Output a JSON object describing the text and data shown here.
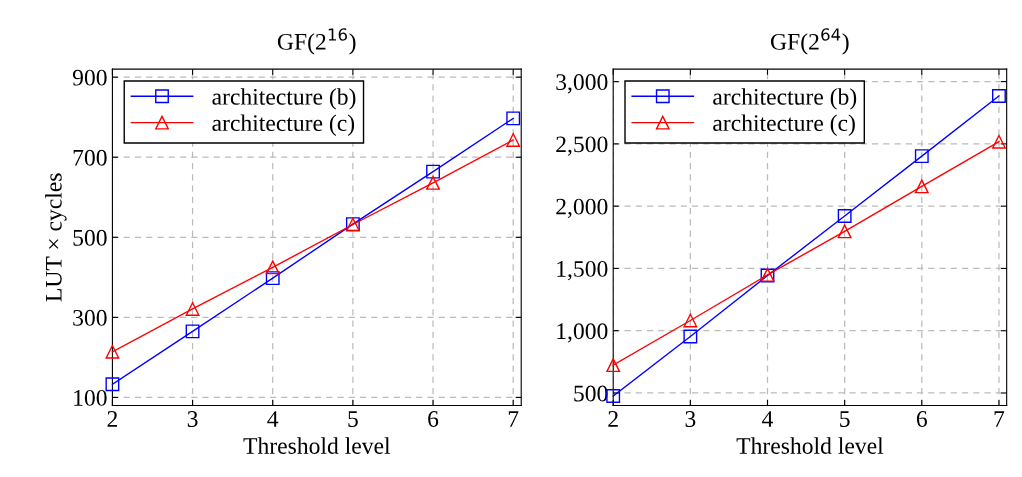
{
  "chart_data": [
    {
      "type": "line",
      "title": "GF(2$^{16}$)",
      "xlabel": "Threshold level",
      "ylabel": "LUT × cycles",
      "x": [
        2,
        3,
        4,
        5,
        6,
        7
      ],
      "xlim": [
        2,
        7.1
      ],
      "xticks": [
        2,
        3,
        4,
        5,
        6,
        7
      ],
      "ylim": [
        80,
        920
      ],
      "yticks": [
        100,
        300,
        500,
        700,
        900
      ],
      "grid": true,
      "legend": "top left",
      "series": [
        {
          "name": "architecture (b)",
          "color": "#0000ff",
          "marker": "square",
          "values": [
            133,
            265,
            398,
            533,
            664,
            797
          ]
        },
        {
          "name": "architecture (c)",
          "color": "#ff0000",
          "marker": "triangle",
          "values": [
            214,
            321,
            425,
            532,
            636,
            743
          ]
        }
      ]
    },
    {
      "type": "line",
      "title": "GF(2$^{64}$)",
      "xlabel": "Threshold level",
      "x": [
        2,
        3,
        4,
        5,
        6,
        7
      ],
      "xlim": [
        2,
        7.1
      ],
      "xticks": [
        2,
        3,
        4,
        5,
        6,
        7
      ],
      "ylim": [
        400,
        3100
      ],
      "yticks": [
        {
          "value": 500,
          "label": "500"
        },
        {
          "value": 1000,
          "label": "1,000"
        },
        {
          "value": 1500,
          "label": "1,500"
        },
        {
          "value": 2000,
          "label": "2,000"
        },
        {
          "value": 2500,
          "label": "2,500"
        },
        {
          "value": 3000,
          "label": "3,000"
        }
      ],
      "grid": true,
      "legend": "top left",
      "series": [
        {
          "name": "architecture (b)",
          "color": "#0000ff",
          "marker": "square",
          "values": [
            476,
            954,
            1443,
            1921,
            2402,
            2885
          ]
        },
        {
          "name": "architecture (c)",
          "color": "#ff0000",
          "marker": "triangle",
          "values": [
            724,
            1082,
            1448,
            1798,
            2159,
            2517
          ]
        }
      ]
    }
  ]
}
